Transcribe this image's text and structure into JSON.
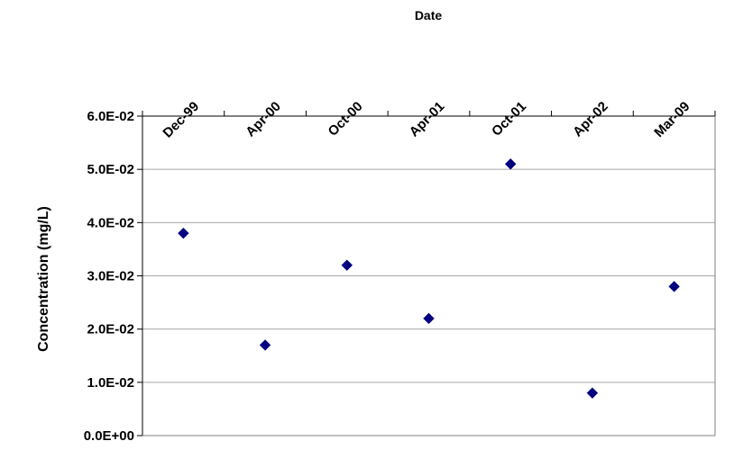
{
  "chart_data": {
    "type": "scatter",
    "title": "",
    "xlabel": "Date",
    "ylabel": "Concentration (mg/L)",
    "x_axis_position": "top",
    "categories": [
      "Dec-99",
      "Apr-00",
      "Oct-00",
      "Apr-01",
      "Oct-01",
      "Apr-02",
      "Mar-09"
    ],
    "y_ticks": [
      "0.0E+00",
      "1.0E-02",
      "2.0E-02",
      "3.0E-02",
      "4.0E-02",
      "5.0E-02",
      "6.0E-02"
    ],
    "ylim": [
      0,
      0.06
    ],
    "grid": "horizontal",
    "legend": "none",
    "marker": "diamond",
    "marker_color": "#000080",
    "series": [
      {
        "values": [
          0.038,
          0.017,
          0.032,
          0.022,
          0.051,
          0.008,
          0.028
        ]
      }
    ]
  }
}
